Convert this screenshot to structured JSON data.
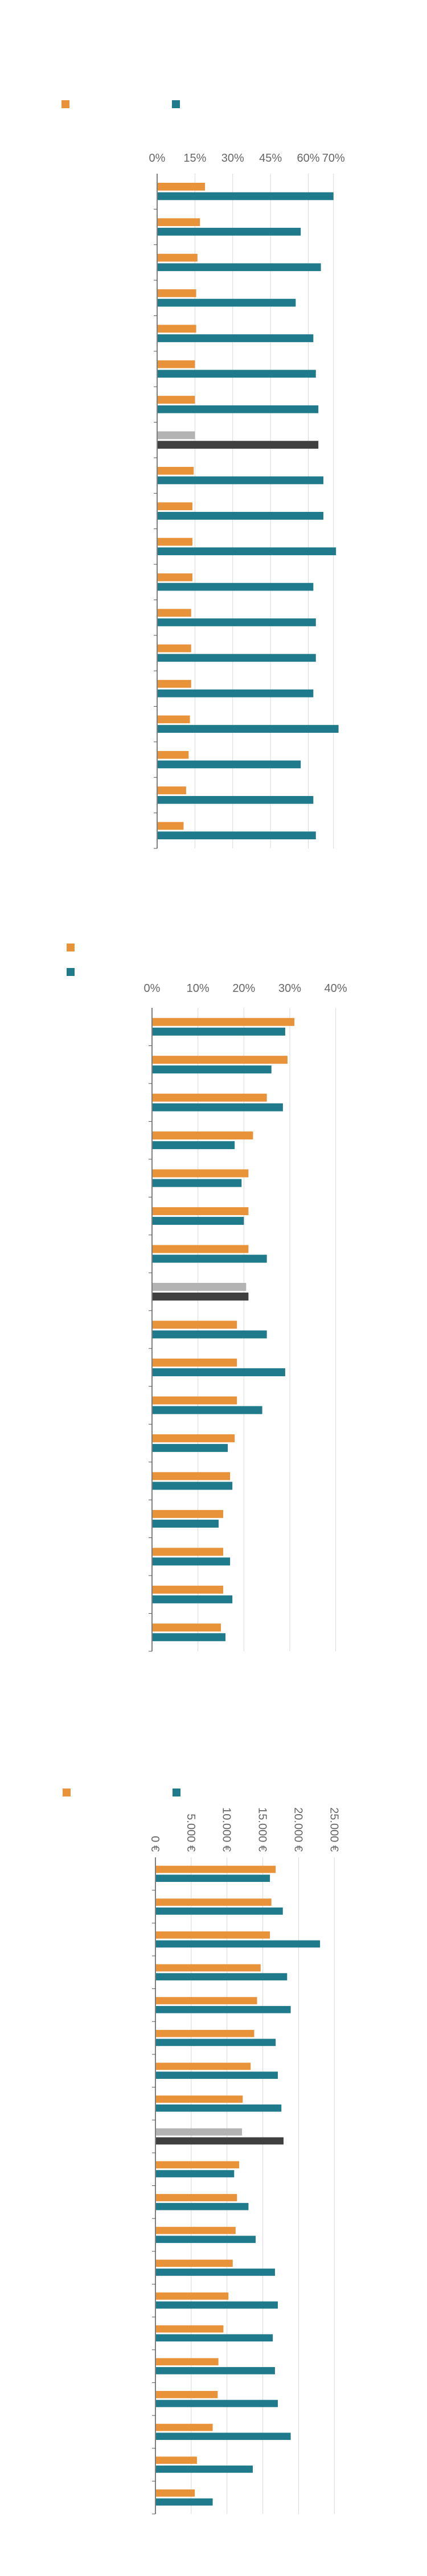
{
  "colors": {
    "orange": "#E8923A",
    "teal": "#1F7A8C",
    "highlight_light": "#B3B3B3",
    "highlight_dark": "#404040",
    "grid": "#D9D9D9",
    "axis": "#555555",
    "tick_text": "#666666"
  },
  "chart_data": [
    {
      "type": "bar",
      "orientation": "horizontal",
      "title": "",
      "xlabel": "",
      "ylabel": "",
      "xlim": [
        0,
        80
      ],
      "tick_values": [
        0,
        15,
        30,
        45,
        60,
        70
      ],
      "tick_labels": [
        "0%",
        "15%",
        "30%",
        "45%",
        "60%",
        "70%"
      ],
      "grid": true,
      "legend": "top-left",
      "categories": [
        "",
        "",
        "",
        "",
        "",
        "",
        "",
        "",
        "",
        "",
        "",
        "",
        "",
        "",
        "",
        "",
        "",
        "",
        ""
      ],
      "highlight_index": 7,
      "series": [
        {
          "name": "",
          "color": "orange",
          "values": [
            19,
            17,
            16,
            15.5,
            15.5,
            15,
            15,
            15,
            14.5,
            14,
            14,
            14,
            13.5,
            13.5,
            13.5,
            13,
            12.5,
            11.5,
            10.5
          ]
        },
        {
          "name": "",
          "color": "teal",
          "values": [
            70,
            57,
            65,
            55,
            62,
            63,
            64,
            64,
            66,
            66,
            71,
            62,
            63,
            63,
            62,
            72,
            57,
            62,
            63
          ]
        }
      ]
    },
    {
      "type": "bar",
      "orientation": "horizontal",
      "title": "",
      "xlabel": "",
      "ylabel": "",
      "xlim": [
        0,
        45
      ],
      "tick_values": [
        0,
        10,
        20,
        30,
        40
      ],
      "tick_labels": [
        "0%",
        "10%",
        "20%",
        "30%",
        "40%"
      ],
      "grid": true,
      "legend": "top-left",
      "categories": [
        "",
        "",
        "",
        "",
        "",
        "",
        "",
        "",
        "",
        "",
        "",
        "",
        "",
        "",
        "",
        "",
        ""
      ],
      "highlight_index": 7,
      "series": [
        {
          "name": "",
          "color": "orange",
          "values": [
            31,
            29.5,
            25,
            22,
            21,
            21,
            21,
            20.5,
            18.5,
            18.5,
            18.5,
            18,
            17,
            15.5,
            15.5,
            15.5,
            15
          ]
        },
        {
          "name": "",
          "color": "teal",
          "values": [
            29,
            26,
            28.5,
            18,
            19.5,
            20,
            25,
            21,
            25,
            29,
            24,
            16.5,
            17.5,
            14.5,
            17,
            17.5,
            16
          ]
        }
      ]
    },
    {
      "type": "bar",
      "orientation": "horizontal",
      "title": "",
      "xlabel": "",
      "ylabel": "",
      "xlim": [
        0,
        28000
      ],
      "tick_values": [
        0,
        5000,
        10000,
        15000,
        20000,
        25000
      ],
      "tick_labels": [
        "0 €",
        "5.000 €",
        "10.000 €",
        "15.000 €",
        "20.000 €",
        "25.000 €"
      ],
      "tick_rotation": "vertical",
      "grid": true,
      "legend": "top-left",
      "categories": [
        "",
        "",
        "",
        "",
        "",
        "",
        "",
        "",
        "",
        "",
        "",
        "",
        "",
        "",
        "",
        "",
        "",
        "",
        "",
        ""
      ],
      "highlight_index": 8,
      "series": [
        {
          "name": "",
          "color": "orange",
          "values": [
            16800,
            16200,
            16000,
            14700,
            14200,
            13800,
            13300,
            12200,
            12100,
            11700,
            11400,
            11200,
            10800,
            10200,
            9500,
            8800,
            8700,
            8000,
            5800,
            5500
          ]
        },
        {
          "name": "",
          "color": "teal",
          "values": [
            16000,
            17800,
            23000,
            18400,
            18900,
            16800,
            17100,
            17600,
            17900,
            11000,
            13000,
            14000,
            16700,
            17100,
            16400,
            16700,
            17100,
            18900,
            13600,
            8000
          ]
        }
      ]
    }
  ]
}
